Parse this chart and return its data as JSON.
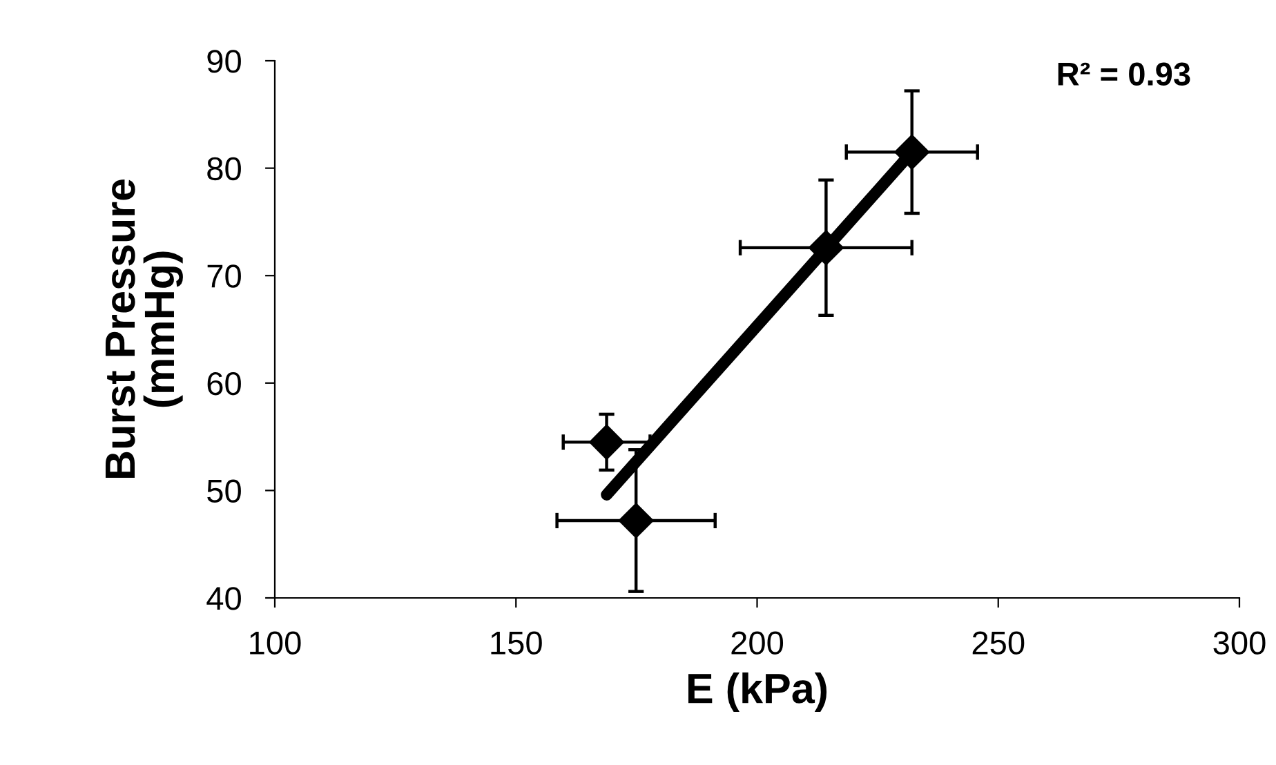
{
  "chart_data": {
    "type": "scatter",
    "xlabel": "E (kPa)",
    "ylabel": "Burst Pressure\n(mmHg)",
    "annotations": [
      "R² = 0.93"
    ],
    "xlim": [
      100,
      300
    ],
    "xticks": [
      100,
      150,
      200,
      250,
      300
    ],
    "ylim": [
      40,
      90
    ],
    "yticks": [
      40,
      50,
      60,
      70,
      80,
      90
    ],
    "grid": false,
    "legend": false,
    "series": [
      {
        "color": "#000000",
        "marker": "diamond",
        "x": [
          168.8,
          174.9,
          214.3,
          232.1
        ],
        "values": [
          54.5,
          47.2,
          72.6,
          81.5
        ],
        "errors": [
          2.6,
          6.6,
          6.3,
          5.7
        ],
        "xerrors": [
          9,
          16.4,
          17.8,
          13.6
        ]
      },
      {
        "type": "line",
        "color": "#000000",
        "line_style": "solid",
        "marker": "none",
        "x": [
          168.8,
          232.1
        ],
        "values": [
          49.6,
          81.5
        ]
      }
    ]
  }
}
